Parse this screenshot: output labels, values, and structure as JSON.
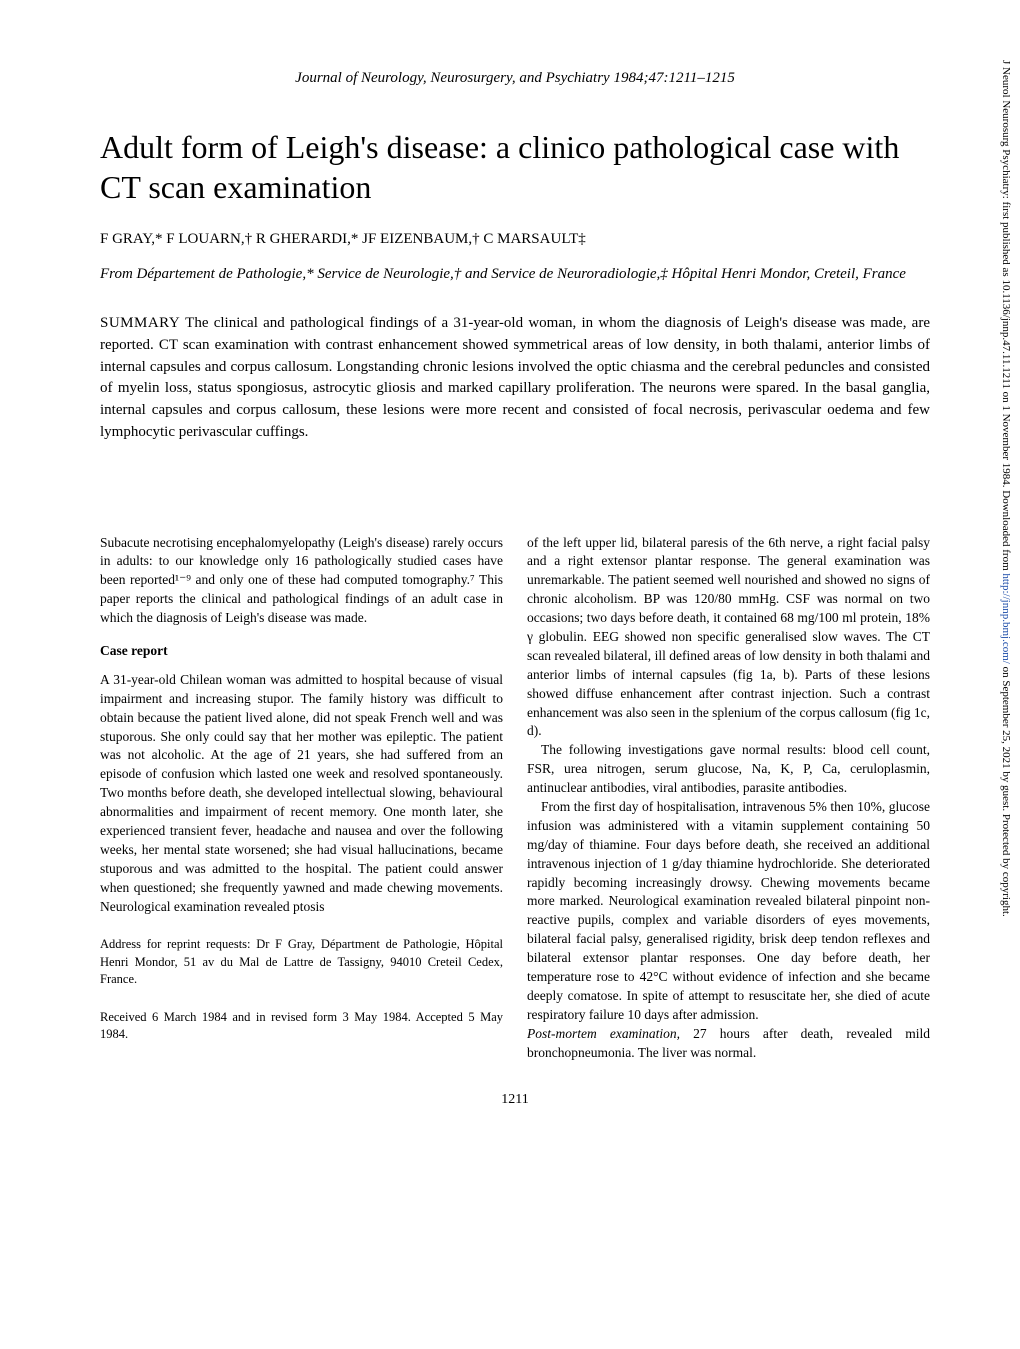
{
  "journal_header": "Journal of Neurology, Neurosurgery, and Psychiatry 1984;47:1211–1215",
  "title": "Adult form of Leigh's disease: a clinico pathological case with CT scan examination",
  "authors": "F GRAY,* F LOUARN,† R GHERARDI,* JF EIZENBAUM,† C MARSAULT‡",
  "affiliation": "From Département de Pathologie,* Service de Neurologie,† and Service de Neuroradiologie,‡ Hôpital Henri Mondor, Creteil, France",
  "summary_label": "SUMMARY",
  "summary_text": "The clinical and pathological findings of a 31-year-old woman, in whom the diagnosis of Leigh's disease was made, are reported. CT scan examination with contrast enhancement showed symmetrical areas of low density, in both thalami, anterior limbs of internal capsules and corpus callosum. Longstanding chronic lesions involved the optic chiasma and the cerebral peduncles and consisted of myelin loss, status spongiosus, astrocytic gliosis and marked capillary proliferation. The neurons were spared. In the basal ganglia, internal capsules and corpus callosum, these lesions were more recent and consisted of focal necrosis, perivascular oedema and few lymphocytic perivascular cuffings.",
  "left_col": {
    "intro": "Subacute necrotising encephalomyelopathy (Leigh's disease) rarely occurs in adults: to our knowledge only 16 pathologically studied cases have been reported¹⁻⁹ and only one of these had computed tomography.⁷ This paper reports the clinical and pathological findings of an adult case in which the diagnosis of Leigh's disease was made.",
    "section_heading": "Case report",
    "case_p1": "A 31-year-old Chilean woman was admitted to hospital because of visual impairment and increasing stupor. The family history was difficult to obtain because the patient lived alone, did not speak French well and was stuporous. She only could say that her mother was epileptic. The patient was not alcoholic. At the age of 21 years, she had suffered from an episode of confusion which lasted one week and resolved spontaneously. Two months before death, she developed intellectual slowing, behavioural abnormalities and impairment of recent memory. One month later, she experienced transient fever, headache and nausea and over the following weeks, her mental state worsened; she had visual hallucinations, became stuporous and was admitted to the hospital. The patient could answer when questioned; she frequently yawned and made chewing movements. Neurological examination revealed ptosis",
    "address": "Address for reprint requests: Dr F Gray, Départment de Pathologie, Hôpital Henri Mondor, 51 av du Mal de Lattre de Tassigny, 94010 Creteil Cedex, France.",
    "received": "Received 6 March 1984 and in revised form 3 May 1984. Accepted 5 May 1984."
  },
  "right_col": {
    "p1": "of the left upper lid, bilateral paresis of the 6th nerve, a right facial palsy and a right extensor plantar response. The general examination was unremarkable. The patient seemed well nourished and showed no signs of chronic alcoholism. BP was 120/80 mmHg. CSF was normal on two occasions; two days before death, it contained 68 mg/100 ml protein, 18% γ globulin. EEG showed non specific generalised slow waves. The CT scan revealed bilateral, ill defined areas of low density in both thalami and anterior limbs of internal capsules (fig 1a, b). Parts of these lesions showed diffuse enhancement after contrast injection. Such a contrast enhancement was also seen in the splenium of the corpus callosum (fig 1c, d).",
    "p2": "The following investigations gave normal results: blood cell count, FSR, urea nitrogen, serum glucose, Na, K, P, Ca, ceruloplasmin, antinuclear antibodies, viral antibodies, parasite antibodies.",
    "p3": "From the first day of hospitalisation, intravenous 5% then 10%, glucose infusion was administered with a vitamin supplement containing 50 mg/day of thiamine. Four days before death, she received an additional intravenous injection of 1 g/day thiamine hydrochloride. She deteriorated rapidly becoming increasingly drowsy. Chewing movements became more marked. Neurological examination revealed bilateral pinpoint non-reactive pupils, complex and variable disorders of eyes movements, bilateral facial palsy, generalised rigidity, brisk deep tendon reflexes and bilateral extensor plantar responses. One day before death, her temperature rose to 42°C without evidence of infection and she became deeply comatose. In spite of attempt to resuscitate her, she died of acute respiratory failure 10 days after admission.",
    "p4_label": "Post-mortem examination,",
    "p4_rest": " 27 hours after death, revealed mild bronchopneumonia. The liver was normal."
  },
  "page_number": "1211",
  "sidebar": {
    "prefix": "J Neurol Neurosurg Psychiatry: first published as 10.1136/jnnp.47.11.1211 on 1 November 1984. Downloaded from ",
    "link_text": "http://jnnp.bmj.com/",
    "suffix": " on September 25, 2021 by guest. Protected by copyright."
  }
}
